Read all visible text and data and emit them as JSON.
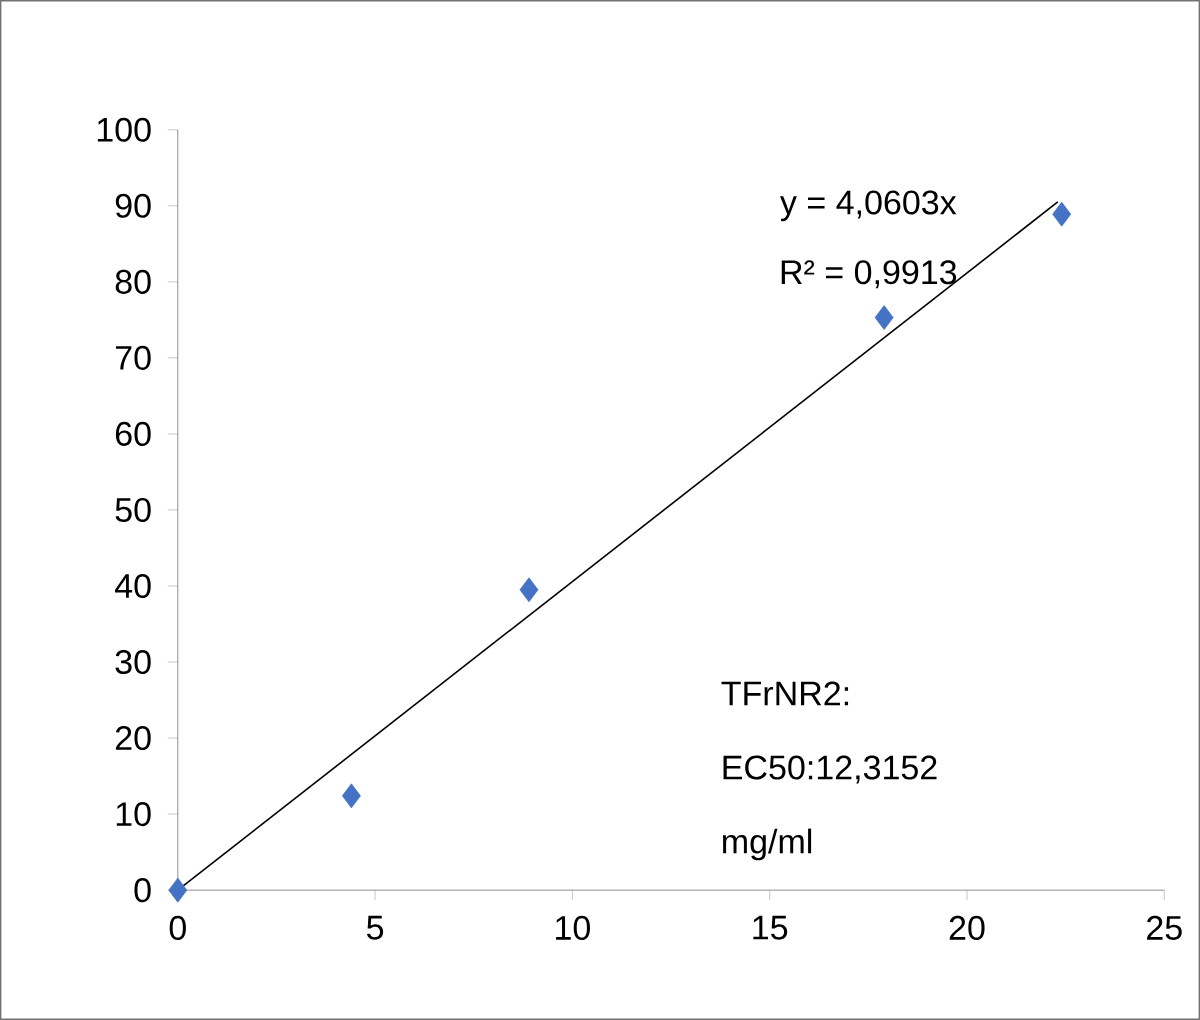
{
  "chart_data": {
    "type": "scatter",
    "xlim": [
      0,
      25
    ],
    "xticks": [
      0,
      5,
      10,
      15,
      20,
      25
    ],
    "ylim": [
      0,
      100
    ],
    "yticks": [
      0,
      10,
      20,
      30,
      40,
      50,
      60,
      70,
      80,
      90,
      100
    ],
    "series": [
      {
        "marker": "diamond",
        "color": "#4472c4",
        "x": [
          0,
          4.4,
          8.9,
          17.9,
          22.4
        ],
        "values": [
          0,
          12.4,
          39.5,
          75.3,
          88.9
        ]
      },
      {
        "type": "line",
        "marker": "none",
        "color": "#000000",
        "x": [
          0,
          22.3
        ],
        "values": [
          0,
          90.5
        ]
      }
    ],
    "annotations": [
      "y = 4,0603x",
      "R² = 0,9913",
      "TFrNR2: EC50:12,3152 mg/ml"
    ]
  }
}
